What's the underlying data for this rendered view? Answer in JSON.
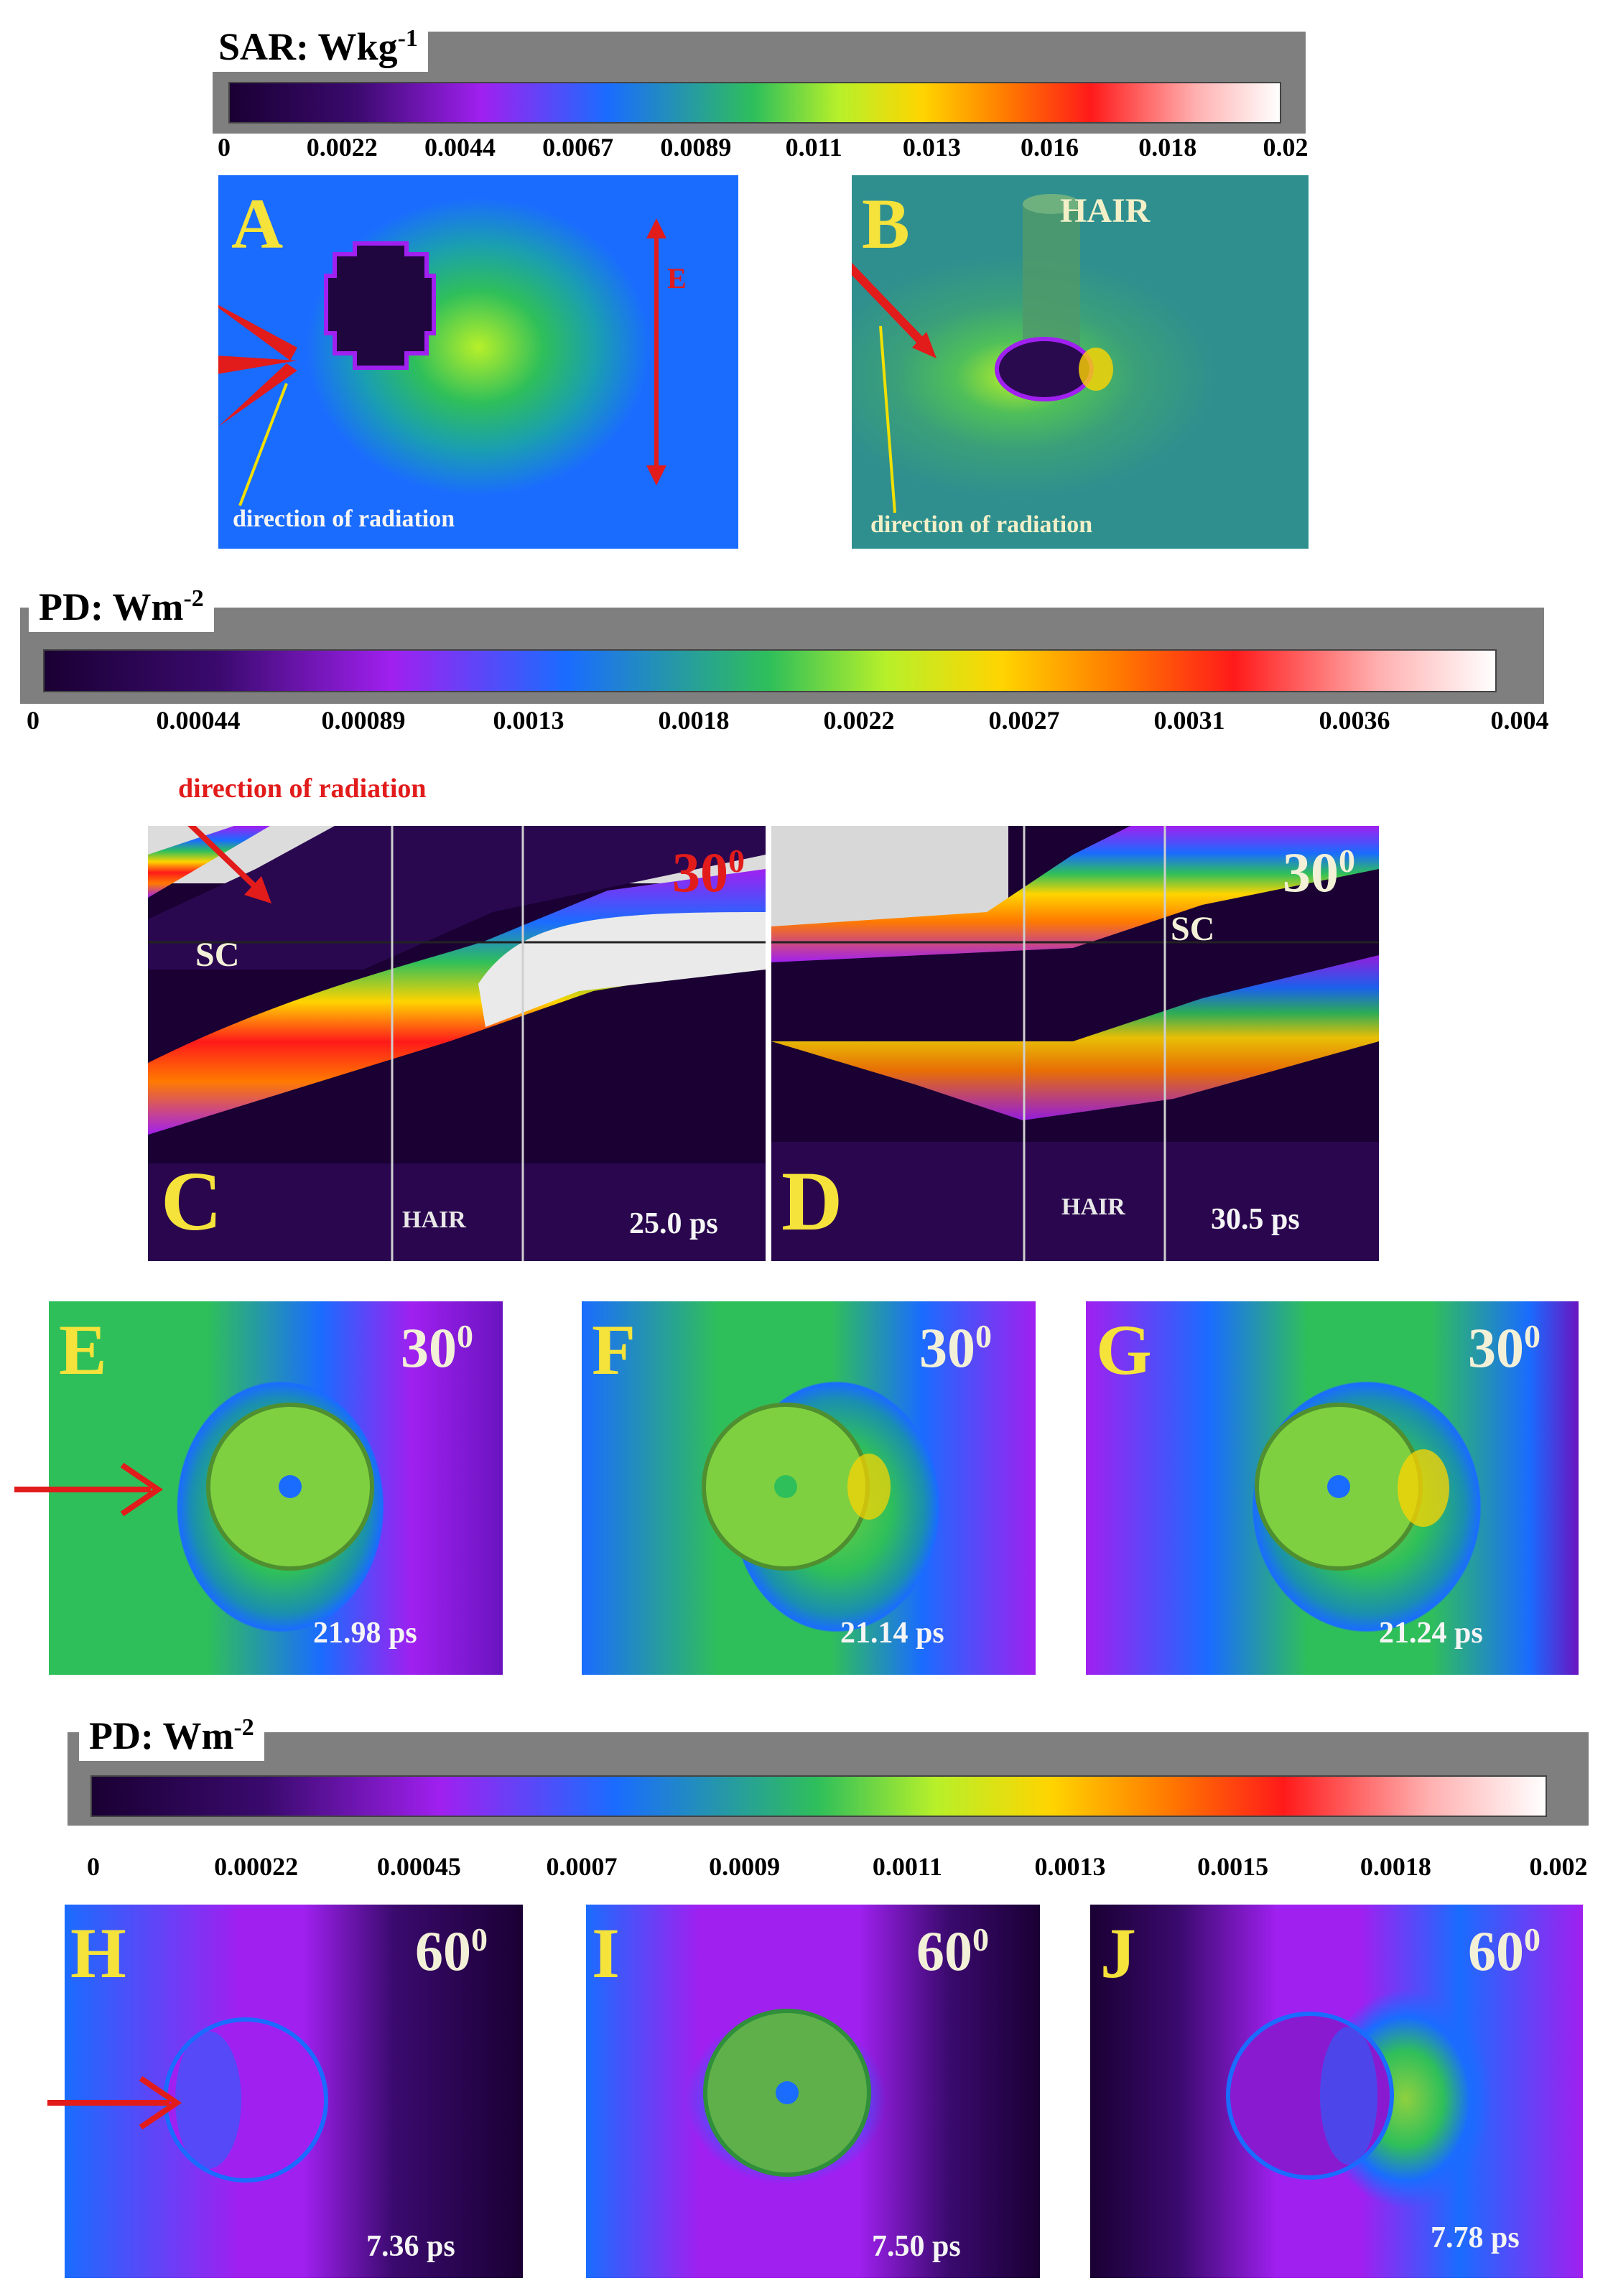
{
  "colorbar_sar": {
    "title": "SAR: Wkg",
    "sup": "-1",
    "ticks": [
      "0",
      "0.0022",
      "0.0044",
      "0.0067",
      "0.0089",
      "0.011",
      "0.013",
      "0.016",
      "0.018",
      "0.02"
    ]
  },
  "colorbar_pd1": {
    "title": "PD: Wm",
    "sup": "-2",
    "ticks": [
      "0",
      "0.00044",
      "0.00089",
      "0.0013",
      "0.0018",
      "0.0022",
      "0.0027",
      "0.0031",
      "0.0036",
      "0.004"
    ]
  },
  "colorbar_pd2": {
    "title": "PD: Wm",
    "sup": "-2",
    "ticks": [
      "0",
      "0.00022",
      "0.00045",
      "0.0007",
      "0.0009",
      "0.0011",
      "0.0013",
      "0.0015",
      "0.0018",
      "0.002"
    ]
  },
  "panels": {
    "A": {
      "label": "A",
      "field_label": "E",
      "note": "direction of radiation"
    },
    "B": {
      "label": "B",
      "hair": "HAIR",
      "note": "direction of radiation"
    },
    "C": {
      "label": "C",
      "angle": "30",
      "angle_sup": "0",
      "sc": "SC",
      "hair": "HAIR",
      "time": "25.0 ps"
    },
    "D": {
      "label": "D",
      "angle": "30",
      "angle_sup": "0",
      "sc": "SC",
      "hair": "HAIR",
      "time": "30.5 ps"
    },
    "E": {
      "label": "E",
      "angle": "30",
      "angle_sup": "0",
      "time": "21.98 ps"
    },
    "F": {
      "label": "F",
      "angle": "30",
      "angle_sup": "0",
      "time": "21.14 ps"
    },
    "G": {
      "label": "G",
      "angle": "30",
      "angle_sup": "0",
      "time": "21.24 ps"
    },
    "H": {
      "label": "H",
      "angle": "60",
      "angle_sup": "0",
      "time": "7.36 ps"
    },
    "I": {
      "label": "I",
      "angle": "60",
      "angle_sup": "0",
      "time": "7.50 ps"
    },
    "J": {
      "label": "J",
      "angle": "60",
      "angle_sup": "0",
      "time": "7.78 ps"
    }
  },
  "cd_note": "direction of radiation",
  "colors": {
    "label_yellow": "#f5e23a",
    "arrow_red": "#e21b1b",
    "marker_yellow": "#f1e000",
    "colormap": [
      "#1a0033",
      "#3a0a6e",
      "#a020f0",
      "#1a6cff",
      "#2fbf5a",
      "#b7f02a",
      "#ffd400",
      "#ff7a00",
      "#ff1a1a",
      "#ffb0b0",
      "#ffffff"
    ]
  }
}
